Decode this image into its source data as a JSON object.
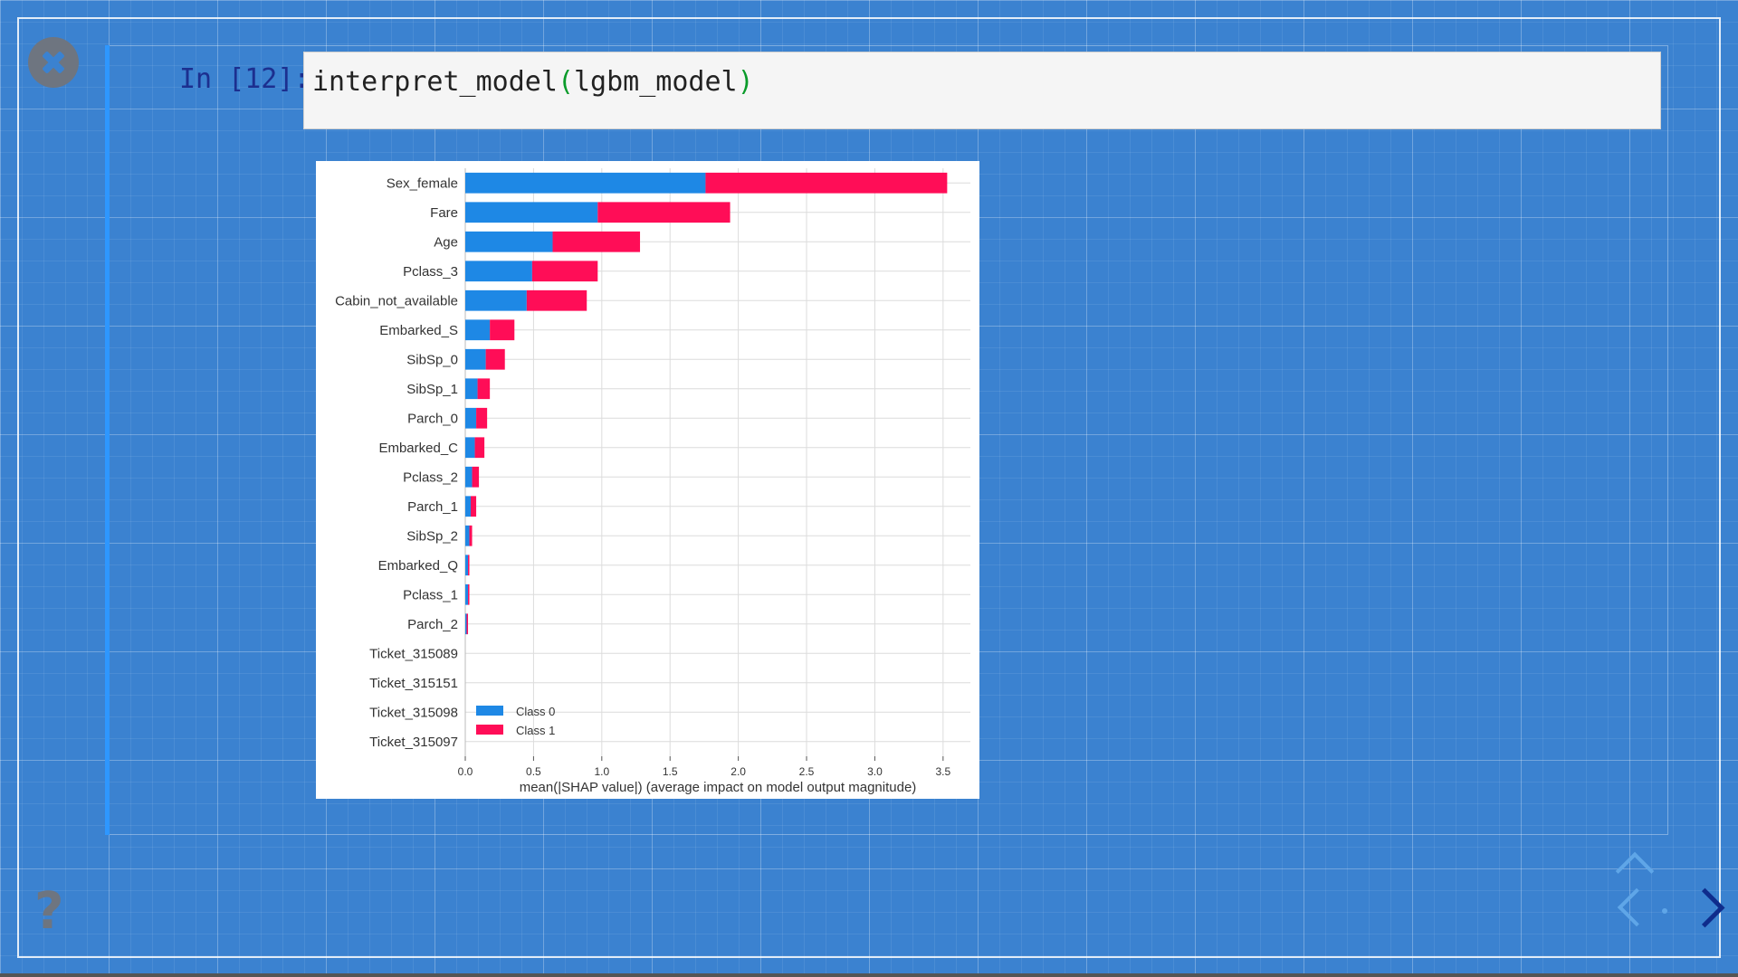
{
  "cell": {
    "prompt": "In [12]:",
    "code_func": "interpret_model",
    "code_open": "(",
    "code_arg": "lgbm_model",
    "code_close": ")"
  },
  "chart_data": {
    "type": "bar",
    "orientation": "horizontal",
    "stacked": true,
    "categories": [
      "Sex_female",
      "Fare",
      "Age",
      "Pclass_3",
      "Cabin_not_available",
      "Embarked_S",
      "SibSp_0",
      "SibSp_1",
      "Parch_0",
      "Embarked_C",
      "Pclass_2",
      "Parch_1",
      "SibSp_2",
      "Embarked_Q",
      "Pclass_1",
      "Parch_2",
      "Ticket_315089",
      "Ticket_315151",
      "Ticket_315098",
      "Ticket_315097"
    ],
    "series": [
      {
        "name": "Class 0",
        "color": "#1e88e5",
        "values": [
          1.76,
          0.97,
          0.64,
          0.49,
          0.45,
          0.18,
          0.15,
          0.09,
          0.08,
          0.07,
          0.05,
          0.04,
          0.03,
          0.02,
          0.02,
          0.01,
          0.0,
          0.0,
          0.0,
          0.0
        ]
      },
      {
        "name": "Class 1",
        "color": "#ff0d57",
        "values": [
          1.77,
          0.97,
          0.64,
          0.48,
          0.44,
          0.18,
          0.14,
          0.09,
          0.08,
          0.07,
          0.05,
          0.04,
          0.02,
          0.01,
          0.01,
          0.01,
          0.0,
          0.0,
          0.0,
          0.0
        ]
      }
    ],
    "xlabel": "mean(|SHAP value|) (average impact on model output magnitude)",
    "xlim": [
      0,
      3.7
    ],
    "xticks": [
      0.0,
      0.5,
      1.0,
      1.5,
      2.0,
      2.5,
      3.0,
      3.5
    ],
    "xtick_labels": [
      "0.0",
      "0.5",
      "1.0",
      "1.5",
      "2.0",
      "2.5",
      "3.0",
      "3.5"
    ],
    "grid": true,
    "legend": "lower-left"
  }
}
